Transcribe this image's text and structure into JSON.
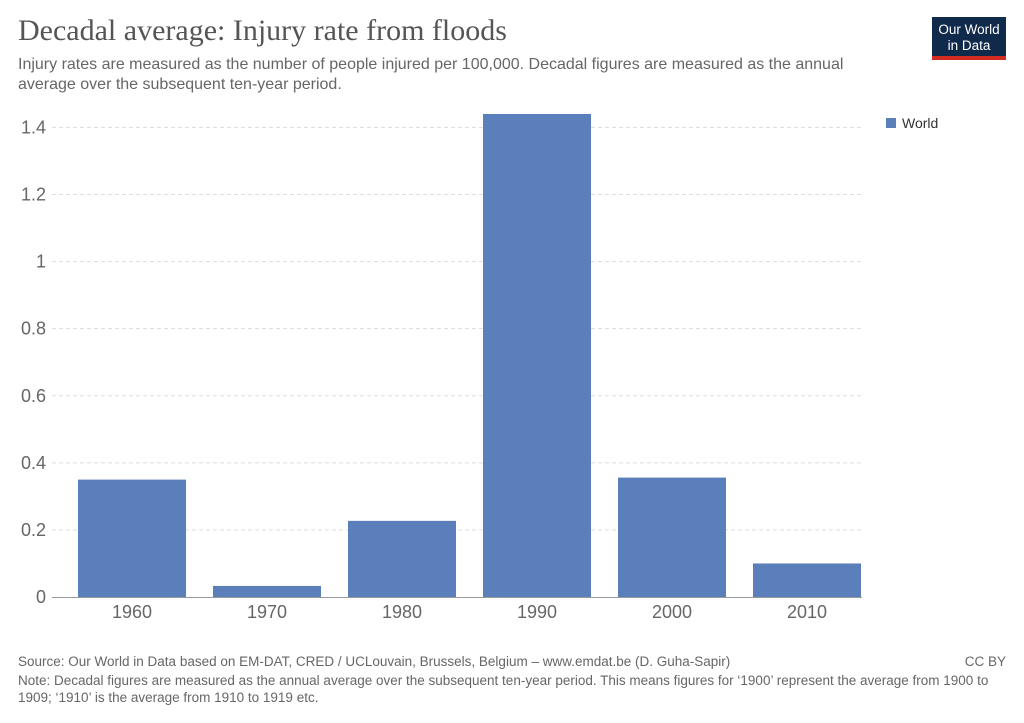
{
  "header": {
    "title": "Decadal average: Injury rate from floods",
    "subtitle": "Injury rates are measured as the number of people injured per 100,000. Decadal figures are measured as the annual average over the subsequent ten-year period."
  },
  "logo": {
    "line1": "Our World",
    "line2": "in Data"
  },
  "legend": {
    "label": "World",
    "color": "#5b7fba"
  },
  "footer": {
    "source": "Source: Our World in Data based on EM-DAT, CRED / UCLouvain, Brussels, Belgium – www.emdat.be (D. Guha-Sapir)",
    "license": "CC BY",
    "note": "Note: Decadal figures are measured as the annual average over the subsequent ten-year period. This means figures for ‘1900’ represent the average from 1900 to 1909; ‘1910’ is the average from 1910 to 1919 etc."
  },
  "chart_data": {
    "type": "bar",
    "categories": [
      "1960",
      "1970",
      "1980",
      "1990",
      "2000",
      "2010"
    ],
    "series": [
      {
        "name": "World",
        "values": [
          0.35,
          0.033,
          0.227,
          1.44,
          0.356,
          0.1
        ]
      }
    ],
    "yticks": [
      0,
      0.2,
      0.4,
      0.6,
      0.8,
      1,
      1.2,
      1.4
    ],
    "ytick_labels": [
      "0",
      "0.2",
      "0.4",
      "0.6",
      "0.8",
      "1",
      "1.2",
      "1.4"
    ],
    "ylim": [
      0,
      1.44
    ],
    "grid": true,
    "legend_position": "top-right",
    "bar_color": "#5b7fba"
  }
}
